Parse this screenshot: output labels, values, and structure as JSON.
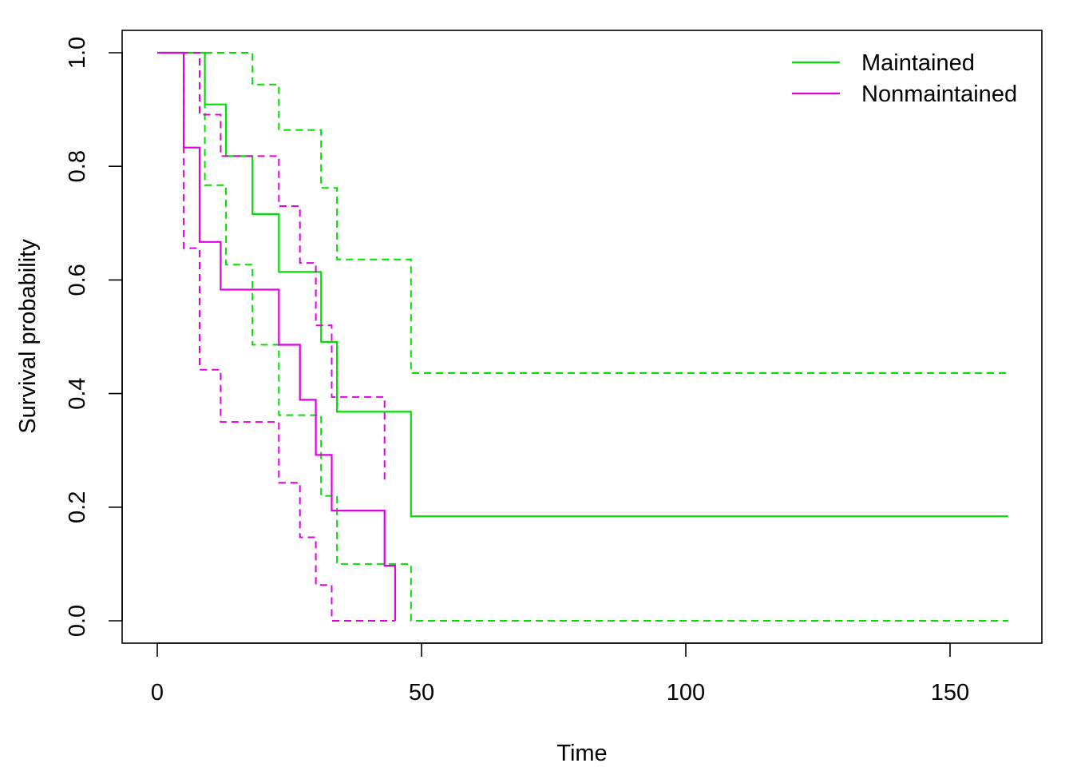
{
  "chart_data": {
    "type": "line",
    "subtype": "kaplan-meier survival step plot with dashed confidence bands",
    "xlabel": "Time",
    "ylabel": "Survival probability",
    "xlim": [
      0,
      161
    ],
    "ylim": [
      0,
      1
    ],
    "x_ticks": [
      0,
      50,
      100,
      150
    ],
    "y_ticks": [
      0.0,
      0.2,
      0.4,
      0.6,
      0.8,
      1.0
    ],
    "x_tick_labels": [
      "0",
      "50",
      "100",
      "150"
    ],
    "y_tick_labels": [
      "0.0",
      "0.2",
      "0.4",
      "0.6",
      "0.8",
      "1.0"
    ],
    "grid": false,
    "legend_position": "top-right",
    "series": [
      {
        "name": "Maintained",
        "color": "#00e000",
        "x_end": 161,
        "survival": [
          [
            0,
            1.0
          ],
          [
            9,
            0.909
          ],
          [
            13,
            0.818
          ],
          [
            18,
            0.716
          ],
          [
            23,
            0.614
          ],
          [
            31,
            0.491
          ],
          [
            34,
            0.368
          ],
          [
            48,
            0.184
          ]
        ],
        "upper": [
          [
            0,
            1.0
          ],
          [
            18,
            0.944
          ],
          [
            23,
            0.864
          ],
          [
            31,
            0.762
          ],
          [
            34,
            0.636
          ],
          [
            48,
            0.436
          ]
        ],
        "lower": [
          [
            0,
            1.0
          ],
          [
            9,
            0.767
          ],
          [
            13,
            0.627
          ],
          [
            18,
            0.486
          ],
          [
            23,
            0.362
          ],
          [
            31,
            0.22
          ],
          [
            34,
            0.1
          ],
          [
            48,
            0.0
          ]
        ]
      },
      {
        "name": "Nonmaintained",
        "color": "#e000e0",
        "x_end": 45,
        "survival": [
          [
            0,
            1.0
          ],
          [
            5,
            0.833
          ],
          [
            8,
            0.667
          ],
          [
            12,
            0.583
          ],
          [
            23,
            0.486
          ],
          [
            27,
            0.389
          ],
          [
            30,
            0.292
          ],
          [
            33,
            0.194
          ],
          [
            43,
            0.097
          ],
          [
            45,
            0.0
          ]
        ],
        "upper": [
          [
            0,
            1.0
          ],
          [
            8,
            0.891
          ],
          [
            12,
            0.818
          ],
          [
            23,
            0.73
          ],
          [
            27,
            0.63
          ],
          [
            30,
            0.52
          ],
          [
            33,
            0.394
          ],
          [
            43,
            0.247
          ]
        ],
        "lower": [
          [
            0,
            1.0
          ],
          [
            5,
            0.656
          ],
          [
            8,
            0.442
          ],
          [
            12,
            0.35
          ],
          [
            23,
            0.243
          ],
          [
            27,
            0.147
          ],
          [
            30,
            0.063
          ],
          [
            33,
            0.0
          ],
          [
            45,
            0.0
          ]
        ]
      }
    ]
  }
}
